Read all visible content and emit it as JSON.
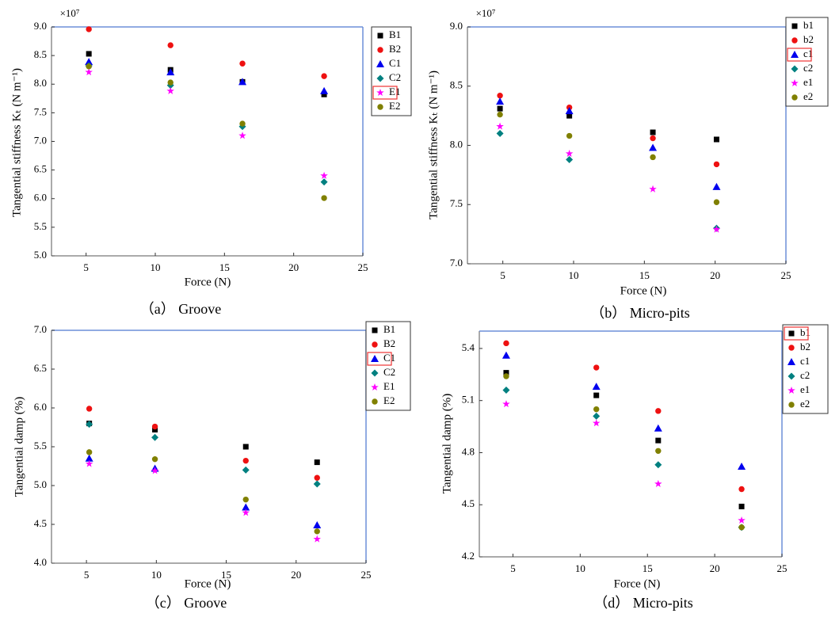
{
  "chart_data": [
    {
      "type": "scatter",
      "multiplier": "×10⁷",
      "xlabel": "Force (N)",
      "ylabel": "Tangential stiffness Kₜ (N m⁻¹)",
      "caption": "（a） Groove",
      "x": [
        5.2,
        11.1,
        16.3,
        22.2
      ],
      "xlim": [
        2.5,
        25
      ],
      "xticks": [
        5,
        10,
        15,
        20,
        25
      ],
      "ylim": [
        5,
        9
      ],
      "yticks": [
        {
          "value": 5,
          "label": "5.0"
        },
        {
          "value": 5.5,
          "label": "5.5"
        },
        {
          "value": 6,
          "label": "6.0"
        },
        {
          "value": 6.5,
          "label": "6.5"
        },
        {
          "value": 7,
          "label": "7.0"
        },
        {
          "value": 7.5,
          "label": "7.5"
        },
        {
          "value": 8,
          "label": "8.0"
        },
        {
          "value": 8.5,
          "label": "8.5"
        },
        {
          "value": 9,
          "label": "9.0"
        }
      ],
      "legend_highlight": 4,
      "series": [
        {
          "name": "B1",
          "color": "#000000",
          "marker": "square",
          "values": [
            8.53,
            8.25,
            8.04,
            7.82
          ]
        },
        {
          "name": "B2",
          "color": "#ee1111",
          "marker": "circle",
          "values": [
            8.96,
            8.68,
            8.36,
            8.14
          ]
        },
        {
          "name": "C1",
          "color": "#0000ee",
          "marker": "triangle",
          "values": [
            8.39,
            8.21,
            8.04,
            7.88
          ]
        },
        {
          "name": "C2",
          "color": "#008080",
          "marker": "diamond",
          "values": [
            8.32,
            7.98,
            7.26,
            6.29
          ]
        },
        {
          "name": "E1",
          "color": "#ff00ff",
          "marker": "star",
          "values": [
            8.21,
            7.88,
            7.1,
            6.4
          ]
        },
        {
          "name": "E2",
          "color": "#808000",
          "marker": "circle",
          "values": [
            8.31,
            8.03,
            7.31,
            6.01
          ]
        }
      ]
    },
    {
      "type": "scatter",
      "multiplier": "×10⁷",
      "xlabel": "Force (N)",
      "ylabel": "Tangential stiffness Kₜ (N m⁻¹)",
      "caption": "（b） Micro-pits",
      "x": [
        4.8,
        9.7,
        15.6,
        20.1
      ],
      "xlim": [
        2.5,
        25
      ],
      "xticks": [
        5,
        10,
        15,
        20,
        25
      ],
      "ylim": [
        7,
        9
      ],
      "yticks": [
        {
          "value": 7,
          "label": "7.0"
        },
        {
          "value": 7.5,
          "label": "7.5"
        },
        {
          "value": 8,
          "label": "8.0"
        },
        {
          "value": 8.5,
          "label": "8.5"
        },
        {
          "value": 9,
          "label": "9.0"
        }
      ],
      "legend_highlight": 2,
      "series": [
        {
          "name": "b1",
          "color": "#000000",
          "marker": "square",
          "values": [
            8.31,
            8.25,
            8.11,
            8.05
          ]
        },
        {
          "name": "b2",
          "color": "#ee1111",
          "marker": "circle",
          "values": [
            8.42,
            8.32,
            8.06,
            7.84
          ]
        },
        {
          "name": "c1",
          "color": "#0000ee",
          "marker": "triangle",
          "values": [
            8.37,
            8.29,
            7.98,
            7.65
          ]
        },
        {
          "name": "c2",
          "color": "#008080",
          "marker": "diamond",
          "values": [
            8.1,
            7.88,
            null,
            7.3
          ]
        },
        {
          "name": "e1",
          "color": "#ff00ff",
          "marker": "star",
          "values": [
            8.16,
            7.93,
            7.63,
            7.29
          ]
        },
        {
          "name": "e2",
          "color": "#808000",
          "marker": "circle",
          "values": [
            8.26,
            8.08,
            7.9,
            7.52
          ]
        }
      ]
    },
    {
      "type": "scatter",
      "xlabel": "Force (N)",
      "ylabel": "Tangential damp (%)",
      "caption": "（c） Groove",
      "x": [
        5.2,
        9.9,
        16.4,
        21.5
      ],
      "xlim": [
        2.5,
        25
      ],
      "xticks": [
        5,
        10,
        15,
        20,
        25
      ],
      "ylim": [
        4,
        7
      ],
      "yticks": [
        {
          "value": 4,
          "label": "4.0"
        },
        {
          "value": 4.5,
          "label": "4.5"
        },
        {
          "value": 5,
          "label": "5.0"
        },
        {
          "value": 5.5,
          "label": "5.5"
        },
        {
          "value": 6,
          "label": "6.0"
        },
        {
          "value": 6.5,
          "label": "6.5"
        },
        {
          "value": 7,
          "label": "7.0"
        }
      ],
      "legend_highlight": 2,
      "series": [
        {
          "name": "B1",
          "color": "#000000",
          "marker": "square",
          "values": [
            5.8,
            5.72,
            5.5,
            5.3
          ]
        },
        {
          "name": "B2",
          "color": "#ee1111",
          "marker": "circle",
          "values": [
            5.99,
            5.76,
            5.32,
            5.1
          ]
        },
        {
          "name": "C1",
          "color": "#0000ee",
          "marker": "triangle",
          "values": [
            5.35,
            5.22,
            4.72,
            4.49
          ]
        },
        {
          "name": "C2",
          "color": "#008080",
          "marker": "diamond",
          "values": [
            5.79,
            5.62,
            5.2,
            5.02
          ]
        },
        {
          "name": "E1",
          "color": "#ff00ff",
          "marker": "star",
          "values": [
            5.28,
            5.19,
            4.65,
            4.31
          ]
        },
        {
          "name": "E2",
          "color": "#808000",
          "marker": "circle",
          "values": [
            5.43,
            5.34,
            4.82,
            4.41
          ]
        }
      ]
    },
    {
      "type": "scatter",
      "xlabel": "Force (N)",
      "ylabel": "Tangential damp (%)",
      "caption": "（d） Micro-pits",
      "x": [
        4.5,
        11.2,
        15.8,
        22
      ],
      "xlim": [
        2.5,
        25
      ],
      "xticks": [
        5,
        10,
        15,
        20,
        25
      ],
      "ylim": [
        4.2,
        5.5
      ],
      "yticks": [
        4.2,
        4.5,
        4.8,
        5.1,
        5.4
      ],
      "legend_highlight": 0,
      "series": [
        {
          "name": "b1",
          "color": "#000000",
          "marker": "square",
          "values": [
            5.26,
            5.13,
            4.87,
            4.49
          ]
        },
        {
          "name": "b2",
          "color": "#ee1111",
          "marker": "circle",
          "values": [
            5.43,
            5.29,
            5.04,
            4.59
          ]
        },
        {
          "name": "c1",
          "color": "#0000ee",
          "marker": "triangle",
          "values": [
            5.36,
            5.18,
            4.94,
            4.72
          ]
        },
        {
          "name": "c2",
          "color": "#008080",
          "marker": "diamond",
          "values": [
            5.16,
            5.01,
            4.73,
            4.37
          ]
        },
        {
          "name": "e1",
          "color": "#ff00ff",
          "marker": "star",
          "values": [
            5.08,
            4.97,
            4.62,
            4.41
          ]
        },
        {
          "name": "e2",
          "color": "#808000",
          "marker": "circle",
          "values": [
            5.24,
            5.05,
            4.81,
            4.37
          ]
        }
      ]
    }
  ]
}
